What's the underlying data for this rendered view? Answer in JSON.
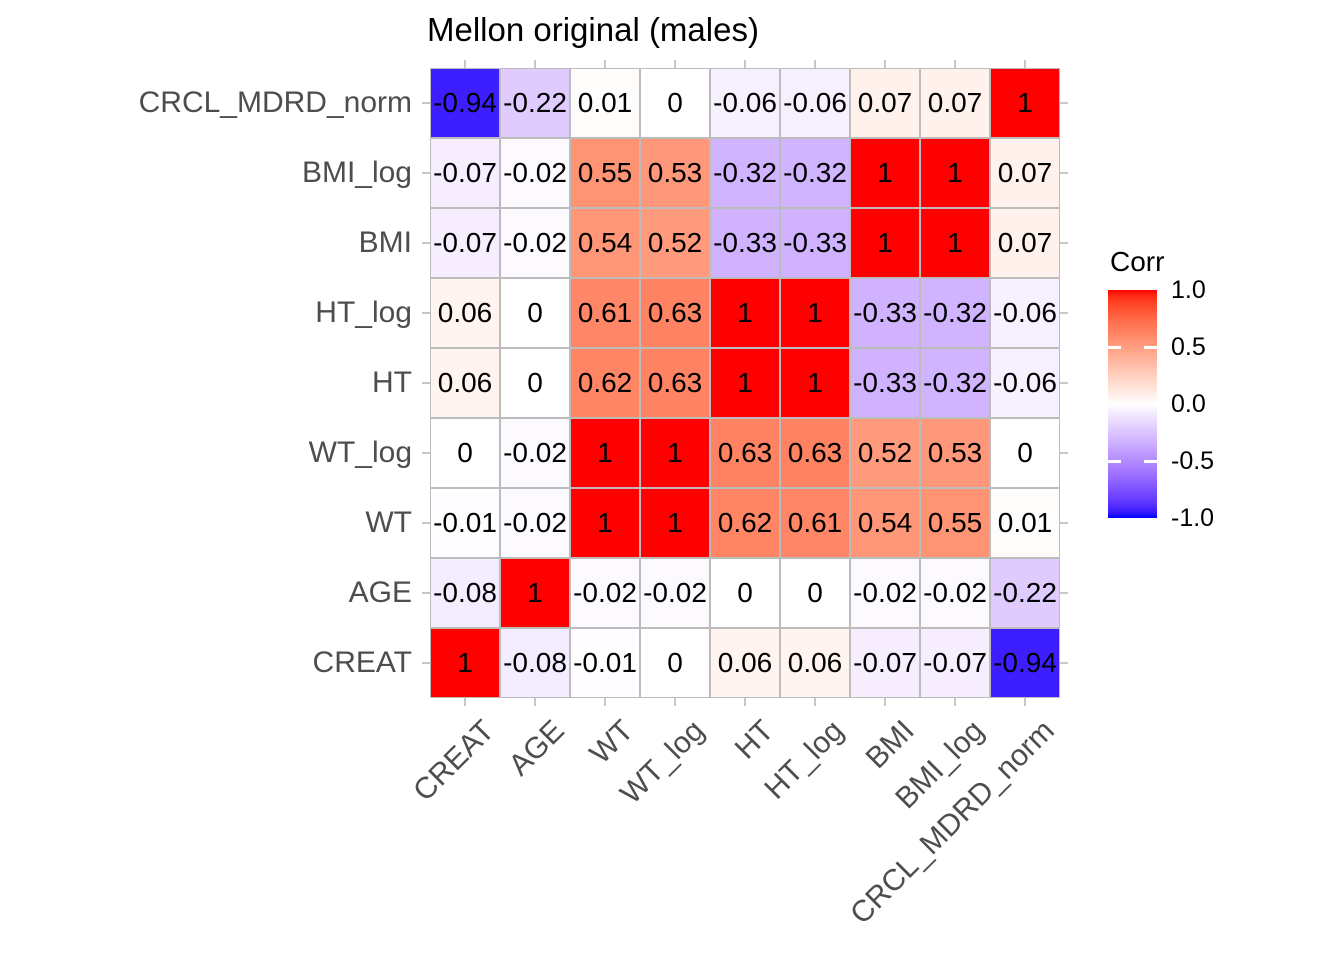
{
  "chart_data": {
    "type": "heatmap",
    "title": "Mellon original (males)",
    "x_categories": [
      "CREAT",
      "AGE",
      "WT",
      "WT_log",
      "HT",
      "HT_log",
      "BMI",
      "BMI_log",
      "CRCL_MDRD_norm"
    ],
    "y_categories_top_to_bottom": [
      "CRCL_MDRD_norm",
      "BMI_log",
      "BMI",
      "HT_log",
      "HT",
      "WT_log",
      "WT",
      "AGE",
      "CREAT"
    ],
    "matrix_rows_top_to_bottom": [
      [
        -0.94,
        -0.22,
        0.01,
        0,
        -0.06,
        -0.06,
        0.07,
        0.07,
        1
      ],
      [
        -0.07,
        -0.02,
        0.55,
        0.53,
        -0.32,
        -0.32,
        1,
        1,
        0.07
      ],
      [
        -0.07,
        -0.02,
        0.54,
        0.52,
        -0.33,
        -0.33,
        1,
        1,
        0.07
      ],
      [
        0.06,
        0,
        0.61,
        0.63,
        1,
        1,
        -0.33,
        -0.32,
        -0.06
      ],
      [
        0.06,
        0,
        0.62,
        0.63,
        1,
        1,
        -0.33,
        -0.32,
        -0.06
      ],
      [
        0,
        -0.02,
        1,
        1,
        0.63,
        0.63,
        0.52,
        0.53,
        0
      ],
      [
        -0.01,
        -0.02,
        1,
        1,
        0.62,
        0.61,
        0.54,
        0.55,
        0.01
      ],
      [
        -0.08,
        1,
        -0.02,
        -0.02,
        0,
        0,
        -0.02,
        -0.02,
        -0.22
      ],
      [
        1,
        -0.08,
        -0.01,
        0,
        0.06,
        0.06,
        -0.07,
        -0.07,
        -0.94
      ]
    ],
    "value_range": [
      -1,
      1
    ],
    "legend": {
      "title": "Corr",
      "tick_labels": [
        "1.0",
        "0.5",
        "0.0",
        "-0.5",
        "-1.0"
      ],
      "tick_values": [
        1.0,
        0.5,
        0.0,
        -0.5,
        -1.0
      ]
    },
    "colors": {
      "high": "#FF0000",
      "mid": "#FFFFFF",
      "low": "#0000FF",
      "cell_border": "#bcbcbc",
      "axis_text": "#4d4d4d",
      "cell_text": "#000000",
      "background": "#FFFFFF"
    },
    "grid_on": true,
    "legend_position": "right"
  }
}
